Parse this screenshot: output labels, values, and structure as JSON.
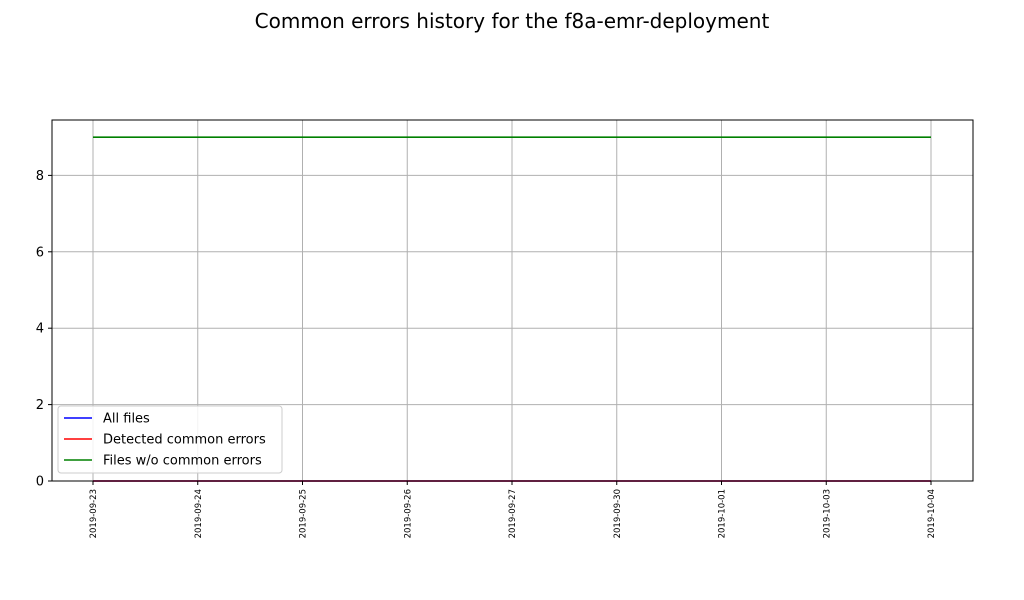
{
  "chart_data": {
    "type": "line",
    "title": "Common errors history for the f8a-emr-deployment",
    "xlabel": "",
    "ylabel": "",
    "categories": [
      "2019-09-23",
      "2019-09-24",
      "2019-09-25",
      "2019-09-26",
      "2019-09-27",
      "2019-09-30",
      "2019-10-01",
      "2019-10-03",
      "2019-10-04"
    ],
    "ylim": [
      0,
      9.45
    ],
    "yticks": [
      0,
      2,
      4,
      6,
      8
    ],
    "grid": true,
    "legend_position": "lower-left",
    "series": [
      {
        "name": "All files",
        "color": "#0000ff",
        "values": [
          0,
          0,
          0,
          0,
          0,
          0,
          0,
          0,
          0
        ]
      },
      {
        "name": "Detected common errors",
        "color": "#ff0000",
        "values": [
          0,
          0,
          0,
          0,
          0,
          0,
          0,
          0,
          0
        ]
      },
      {
        "name": "Files w/o common errors",
        "color": "#008000",
        "values": [
          9,
          9,
          9,
          9,
          9,
          9,
          9,
          9,
          9
        ]
      }
    ]
  }
}
